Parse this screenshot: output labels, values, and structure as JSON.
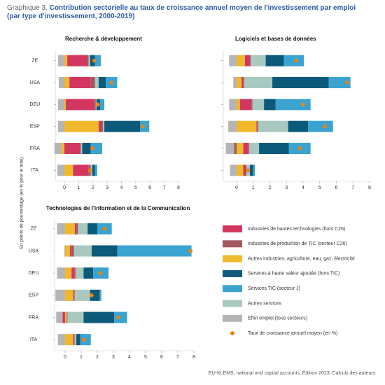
{
  "title_prefix": "Graphique 3.",
  "title": "Contribution sectorielle au taux de croissance annuel moyen de l'investissement par emploi",
  "subtitle": "(par type d'investissement, 2000-2019)",
  "y_axis_label": "En points de pourcentage (en % pour le total)",
  "source": "EU-KLEMS, national and capital accounts, Édition 2023. Calculs des auteurs.",
  "chart_data": [
    {
      "type": "bar",
      "orientation": "horizontal",
      "stacked": true,
      "title": "Recherche & développement",
      "categories": [
        "ZE",
        "USA",
        "DEU",
        "ESP",
        "FRA",
        "ITA"
      ],
      "xlim": [
        -0.6,
        8
      ],
      "xticks": [
        0,
        1,
        2,
        3,
        4,
        5,
        6,
        7,
        8
      ],
      "series": [
        {
          "name": "Industries de hautes technologies (hors C26)",
          "color": "#d2385f",
          "values": [
            1.4,
            1.5,
            2.0,
            0.2,
            1.1,
            1.1
          ]
        },
        {
          "name": "Industries de production de TIC (secteur C26)",
          "color": "#a6575e",
          "values": [
            0.1,
            0.3,
            0.1,
            0.1,
            0.05,
            0.15
          ]
        },
        {
          "name": "Autres industries, agriculture, eau, gaz, électricité",
          "color": "#f0b92b",
          "values": [
            0.2,
            0.35,
            0.1,
            2.4,
            -0.2,
            0.6
          ]
        },
        {
          "name": "Services à haute valeur ajoutée (hors TIC)",
          "color": "#0b5a7a",
          "values": [
            0.35,
            0.5,
            0.25,
            2.5,
            0.6,
            0.2
          ]
        },
        {
          "name": "Services TIC (secteur J)",
          "color": "#3ba3d0",
          "values": [
            0.4,
            0.8,
            0.3,
            0.65,
            0.8,
            0.15
          ]
        },
        {
          "name": "Autres services",
          "color": "#a8c8c0",
          "values": [
            0.1,
            0.25,
            0.05,
            0.1,
            0.1,
            0.1
          ]
        },
        {
          "name": "Effet emploi (tous secteurs)",
          "color": "#b5b5b5",
          "values": [
            -0.45,
            -0.4,
            -0.45,
            -0.45,
            -0.5,
            -0.5
          ]
        },
        {
          "name": "Taux de croissance annuel moyen (en %)",
          "type": "scatter",
          "color": "#e8850f",
          "values": [
            2.1,
            3.3,
            2.35,
            5.5,
            1.95,
            1.8
          ]
        }
      ]
    },
    {
      "type": "bar",
      "orientation": "horizontal",
      "stacked": true,
      "title": "Logiciels et bases de données",
      "xlim": [
        -0.8,
        8
      ],
      "xticks": [
        0,
        1,
        2,
        3,
        4,
        5,
        6,
        7,
        8
      ],
      "series": [
        {
          "name": "Industries de hautes technologies (hors C26)",
          "color": "#d2385f",
          "values": [
            0.3,
            0.1,
            0.7,
            0.05,
            0.35,
            0.15
          ]
        },
        {
          "name": "Industries de production de TIC (secteur C26)",
          "color": "#a6575e",
          "values": [
            0.05,
            0.05,
            0.05,
            0.05,
            -0.15,
            0.05
          ]
        },
        {
          "name": "Autres industries, agriculture, eau, gaz, électricité",
          "color": "#f0b92b",
          "values": [
            0.5,
            0.3,
            0.2,
            1.2,
            0.4,
            0.4
          ]
        },
        {
          "name": "Services à haute valeur ajoutée (hors TIC)",
          "color": "#0b5a7a",
          "values": [
            1.1,
            3.4,
            0.7,
            1.2,
            1.8,
            0.2
          ]
        },
        {
          "name": "Services TIC (secteur J)",
          "color": "#3ba3d0",
          "values": [
            1.2,
            1.3,
            2.1,
            1.5,
            1.3,
            0.1
          ]
        },
        {
          "name": "Autres services",
          "color": "#a8c8c0",
          "values": [
            0.9,
            1.7,
            0.7,
            1.8,
            0.6,
            0.2
          ]
        },
        {
          "name": "Effet emploi (tous secteurs)",
          "color": "#b5b5b5",
          "values": [
            -0.45,
            -0.2,
            -0.45,
            -0.5,
            -0.5,
            -0.4
          ]
        },
        {
          "name": "Taux de croissance annuel moyen (en %)",
          "type": "scatter",
          "color": "#e8850f",
          "values": [
            3.6,
            6.65,
            4.0,
            5.3,
            3.8,
            0.7
          ]
        }
      ]
    },
    {
      "type": "bar",
      "orientation": "horizontal",
      "stacked": true,
      "title": "Technologies de l'information et de la Communication",
      "categories": [
        "ZE",
        "USA",
        "DEU",
        "ESP",
        "FRA",
        "ITA"
      ],
      "xlim": [
        -0.65,
        8
      ],
      "xticks": [
        0,
        1,
        2,
        3,
        4,
        5,
        6,
        7,
        8
      ],
      "series": [
        {
          "name": "Industries de hautes technologies (hors C26)",
          "color": "#d2385f",
          "values": [
            0.1,
            0.1,
            0.2,
            0.05,
            -0.15,
            0.05
          ]
        },
        {
          "name": "Industries de production de TIC (secteur C26)",
          "color": "#a6575e",
          "values": [
            0.1,
            0.15,
            0.05,
            0.05,
            0.05,
            0.05
          ]
        },
        {
          "name": "Autres industries, agriculture, eau, gaz, électricité",
          "color": "#f0b92b",
          "values": [
            0.6,
            0.3,
            0.4,
            0.5,
            0.1,
            0.5
          ]
        },
        {
          "name": "Services à haute valeur ajoutée (hors TIC)",
          "color": "#0b5a7a",
          "values": [
            0.6,
            1.6,
            0.6,
            0.6,
            1.9,
            0.25
          ]
        },
        {
          "name": "Services TIC (secteur J)",
          "color": "#3ba3d0",
          "values": [
            0.9,
            4.6,
            0.95,
            0.1,
            0.8,
            0.65
          ]
        },
        {
          "name": "Autres services",
          "color": "#a8c8c0",
          "values": [
            0.6,
            1.1,
            0.5,
            0.95,
            1.0,
            0.1
          ]
        },
        {
          "name": "Effet emploi (tous secteurs)",
          "color": "#b5b5b5",
          "values": [
            -0.5,
            -0.05,
            -0.5,
            -0.6,
            -0.4,
            -0.45
          ]
        },
        {
          "name": "Taux de croissance annuel moyen (en %)",
          "type": "scatter",
          "color": "#e8850f",
          "values": [
            2.45,
            7.8,
            2.2,
            1.65,
            3.3,
            1.15
          ]
        }
      ]
    }
  ]
}
